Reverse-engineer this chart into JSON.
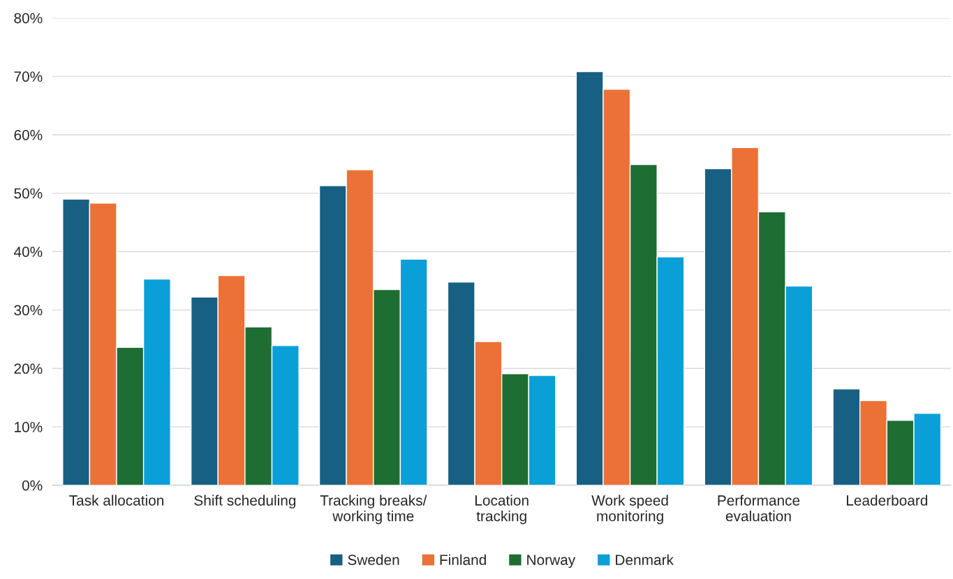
{
  "chart_data": {
    "type": "bar",
    "categories": [
      "Task allocation",
      "Shift scheduling",
      "Tracking breaks/\nworking time",
      "Location\ntracking",
      "Work speed\nmonitoring",
      "Performance\nevaluation",
      "Leaderboard"
    ],
    "series": [
      {
        "name": "Sweden",
        "color": "#186083",
        "values": [
          49.0,
          32.2,
          51.3,
          34.8,
          70.8,
          54.2,
          16.5
        ]
      },
      {
        "name": "Finland",
        "color": "#ec7136",
        "values": [
          48.3,
          35.9,
          54.0,
          24.6,
          67.8,
          57.8,
          14.5
        ]
      },
      {
        "name": "Norway",
        "color": "#1e6e34",
        "values": [
          23.6,
          27.1,
          33.5,
          19.1,
          54.9,
          46.8,
          11.1
        ]
      },
      {
        "name": "Denmark",
        "color": "#0b9fd8",
        "values": [
          35.3,
          23.9,
          38.7,
          18.8,
          39.1,
          34.1,
          12.3
        ]
      }
    ],
    "ylim": [
      0,
      80
    ],
    "yticks": [
      {
        "value": 0,
        "label": "0%"
      },
      {
        "value": 10,
        "label": "10%"
      },
      {
        "value": 20,
        "label": "20%"
      },
      {
        "value": 30,
        "label": "30%"
      },
      {
        "value": 40,
        "label": "40%"
      },
      {
        "value": 50,
        "label": "50%"
      },
      {
        "value": 60,
        "label": "60%"
      },
      {
        "value": 70,
        "label": "70%"
      },
      {
        "value": 80,
        "label": "80%"
      }
    ],
    "grid": "y",
    "legend": "bottom"
  }
}
